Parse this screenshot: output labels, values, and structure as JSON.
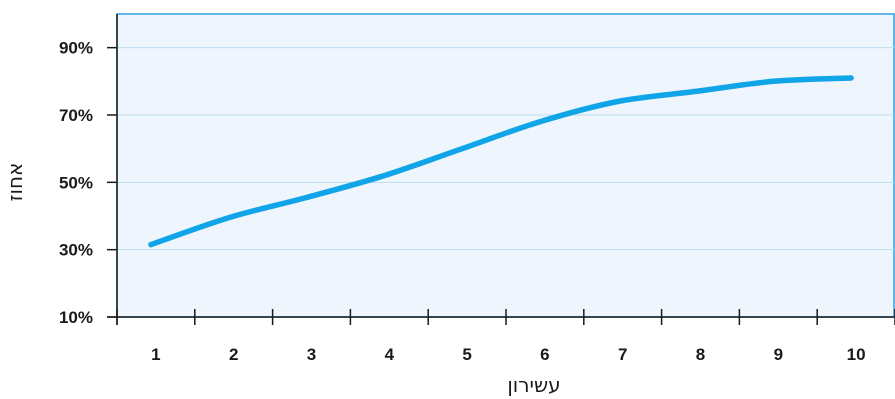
{
  "chart_data": {
    "type": "line",
    "title": "",
    "xlabel": "עשירון",
    "ylabel": "אחוז",
    "x": [
      1,
      2,
      3,
      4,
      5,
      6,
      7,
      8,
      9,
      10
    ],
    "x_ticks": [
      "1",
      "2",
      "3",
      "4",
      "5",
      "6",
      "7",
      "8",
      "9",
      "10"
    ],
    "y_ticks": [
      "10%",
      "30%",
      "50%",
      "70%",
      "90%"
    ],
    "y_tick_values": [
      10,
      30,
      50,
      70,
      90
    ],
    "xlim": [
      0.5,
      10.5
    ],
    "ylim": [
      10,
      100
    ],
    "grid": true,
    "legend": "none",
    "series": [
      {
        "values": [
          31.5,
          39.5,
          45.5,
          52,
          60,
          68,
          74,
          77,
          80,
          81
        ]
      }
    ],
    "colors": {
      "line": "#10a5e8",
      "plot_background": "#eef5fc",
      "frame": "#2b9fe0",
      "grid": "#bcdcf0",
      "axis": "#1a1a1a"
    }
  }
}
